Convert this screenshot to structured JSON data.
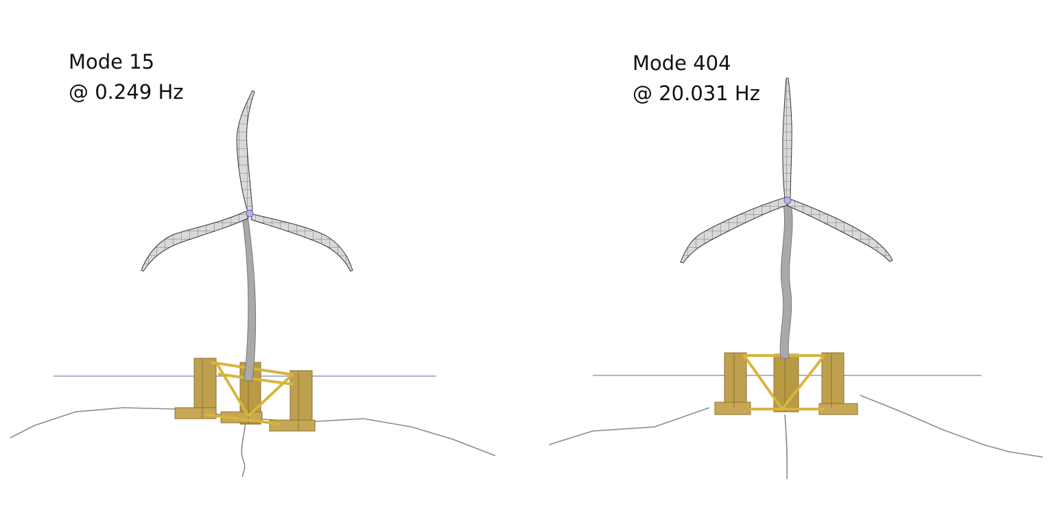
{
  "panels": [
    {
      "mode": "Mode 15",
      "frequency": "@ 0.249 Hz"
    },
    {
      "mode": "Mode 404",
      "frequency": "@ 20.031 Hz"
    }
  ],
  "colors": {
    "blade_fill": "#d6d6d8",
    "blade_edge": "#3a3a3a",
    "tower": "#a9a9a9",
    "platform": "#bfa04e",
    "platform_dark": "#8c7230",
    "brace": "#d8b43c",
    "waterline": "#8f9bc0",
    "seabed": "#8a8a8a",
    "hub": "#9a8fd6"
  }
}
